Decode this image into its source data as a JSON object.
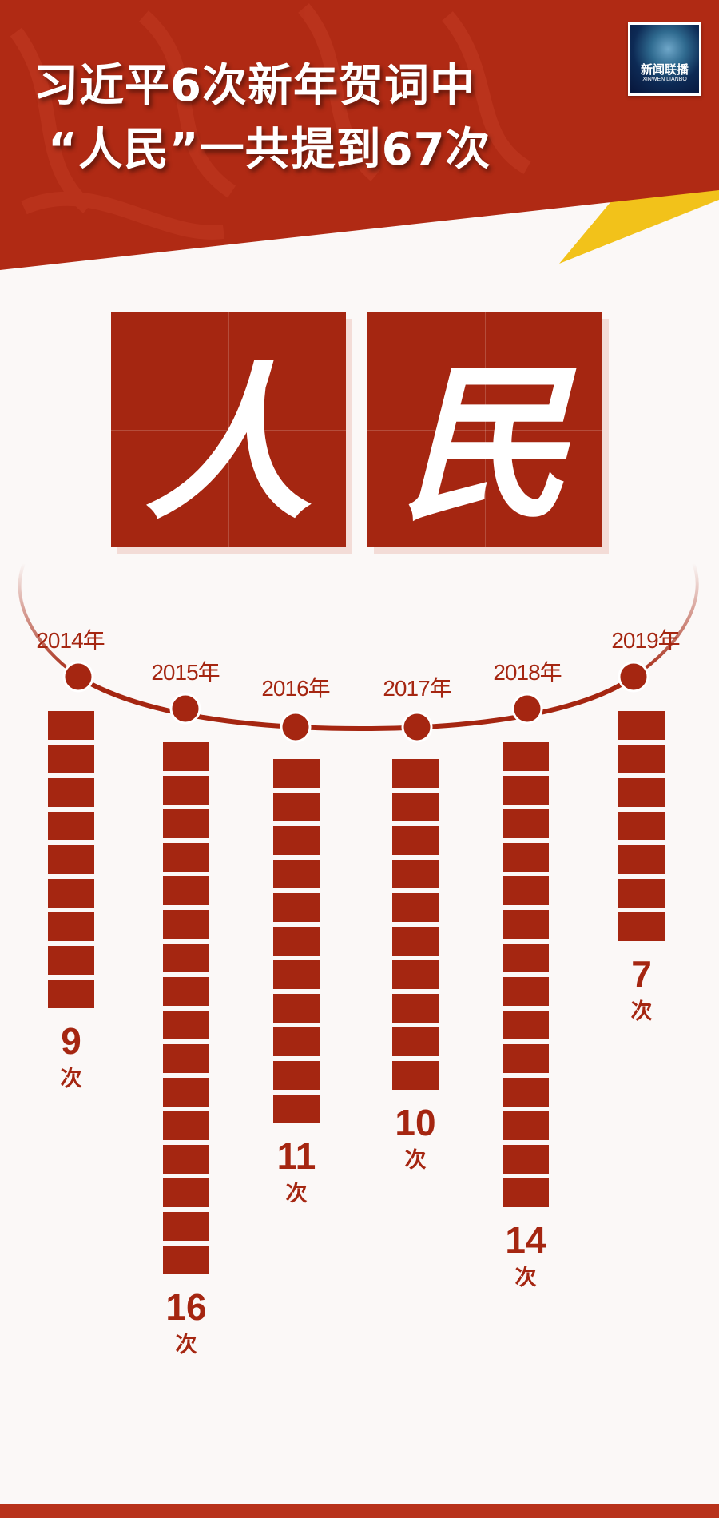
{
  "header": {
    "title_line1": "习近平6次新年贺词中",
    "title_line2": "“人民”一共提到67次",
    "logo": {
      "cn": "新闻联播",
      "en": "XINWEN LIANBO"
    }
  },
  "hero": {
    "char1": "人",
    "char2": "民"
  },
  "colors": {
    "primary_red": "#a52611",
    "accent_yellow": "#f2c21a",
    "background": "#fbf8f7"
  },
  "chart_data": {
    "type": "bar",
    "categories": [
      "2014年",
      "2015年",
      "2016年",
      "2017年",
      "2018年",
      "2019年"
    ],
    "values": [
      9,
      16,
      11,
      10,
      14,
      7
    ],
    "value_labels": [
      "9",
      "16",
      "11",
      "10",
      "14",
      "7"
    ],
    "unit": "次",
    "title": "",
    "xlabel": "",
    "ylabel": ""
  }
}
